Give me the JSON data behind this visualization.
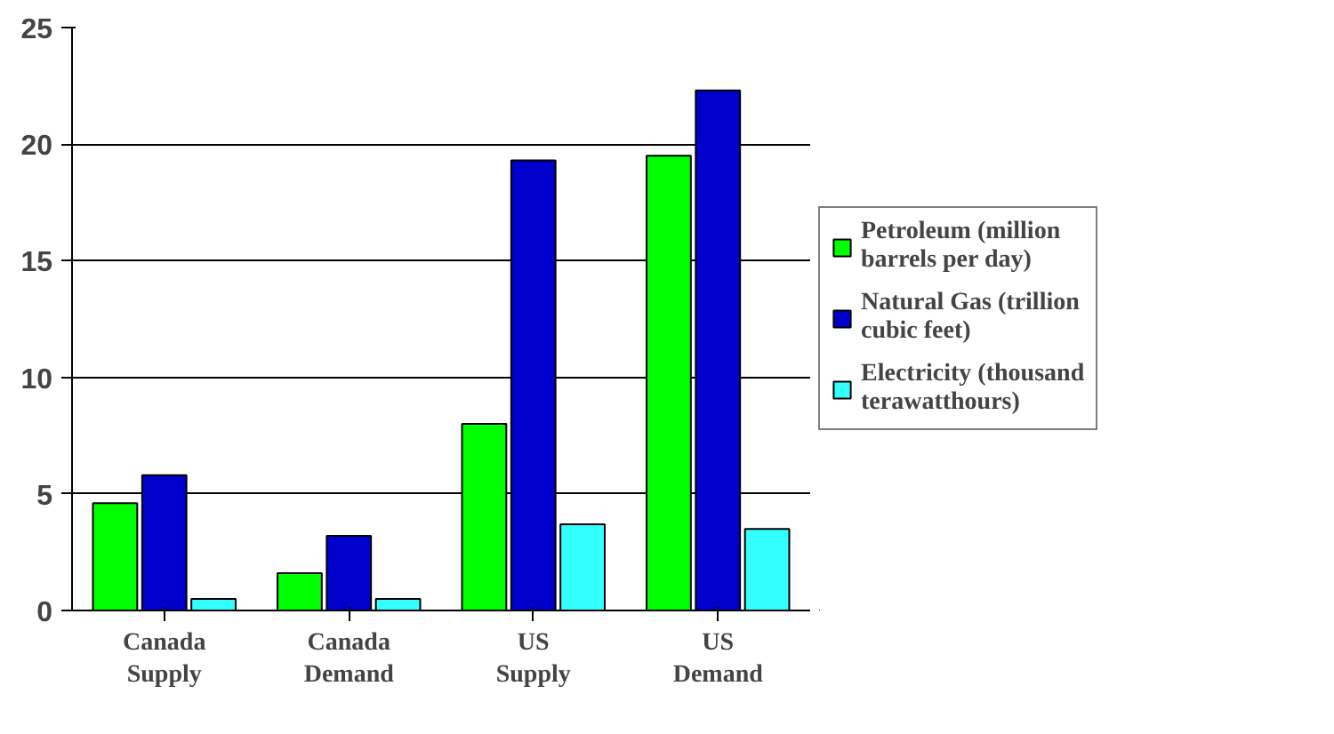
{
  "chart_data": {
    "type": "bar",
    "categories": [
      "Canada Supply",
      "Canada Demand",
      "US Supply",
      "US Demand"
    ],
    "series": [
      {
        "name": "Petroleum (million barrels per day)",
        "color": "#00ff00",
        "values": [
          4.6,
          1.6,
          8.0,
          19.5
        ]
      },
      {
        "name": "Natural Gas (trillion cubic feet)",
        "color": "#0000cc",
        "values": [
          5.8,
          3.2,
          19.3,
          22.3
        ]
      },
      {
        "name": "Electricity (thousand terawatthours)",
        "color": "#33ffff",
        "values": [
          0.5,
          0.5,
          3.7,
          3.5
        ]
      }
    ],
    "ylim": [
      0,
      25
    ],
    "yticks": [
      0,
      5,
      10,
      15,
      20,
      25
    ],
    "grid": "y",
    "legend": "right"
  }
}
